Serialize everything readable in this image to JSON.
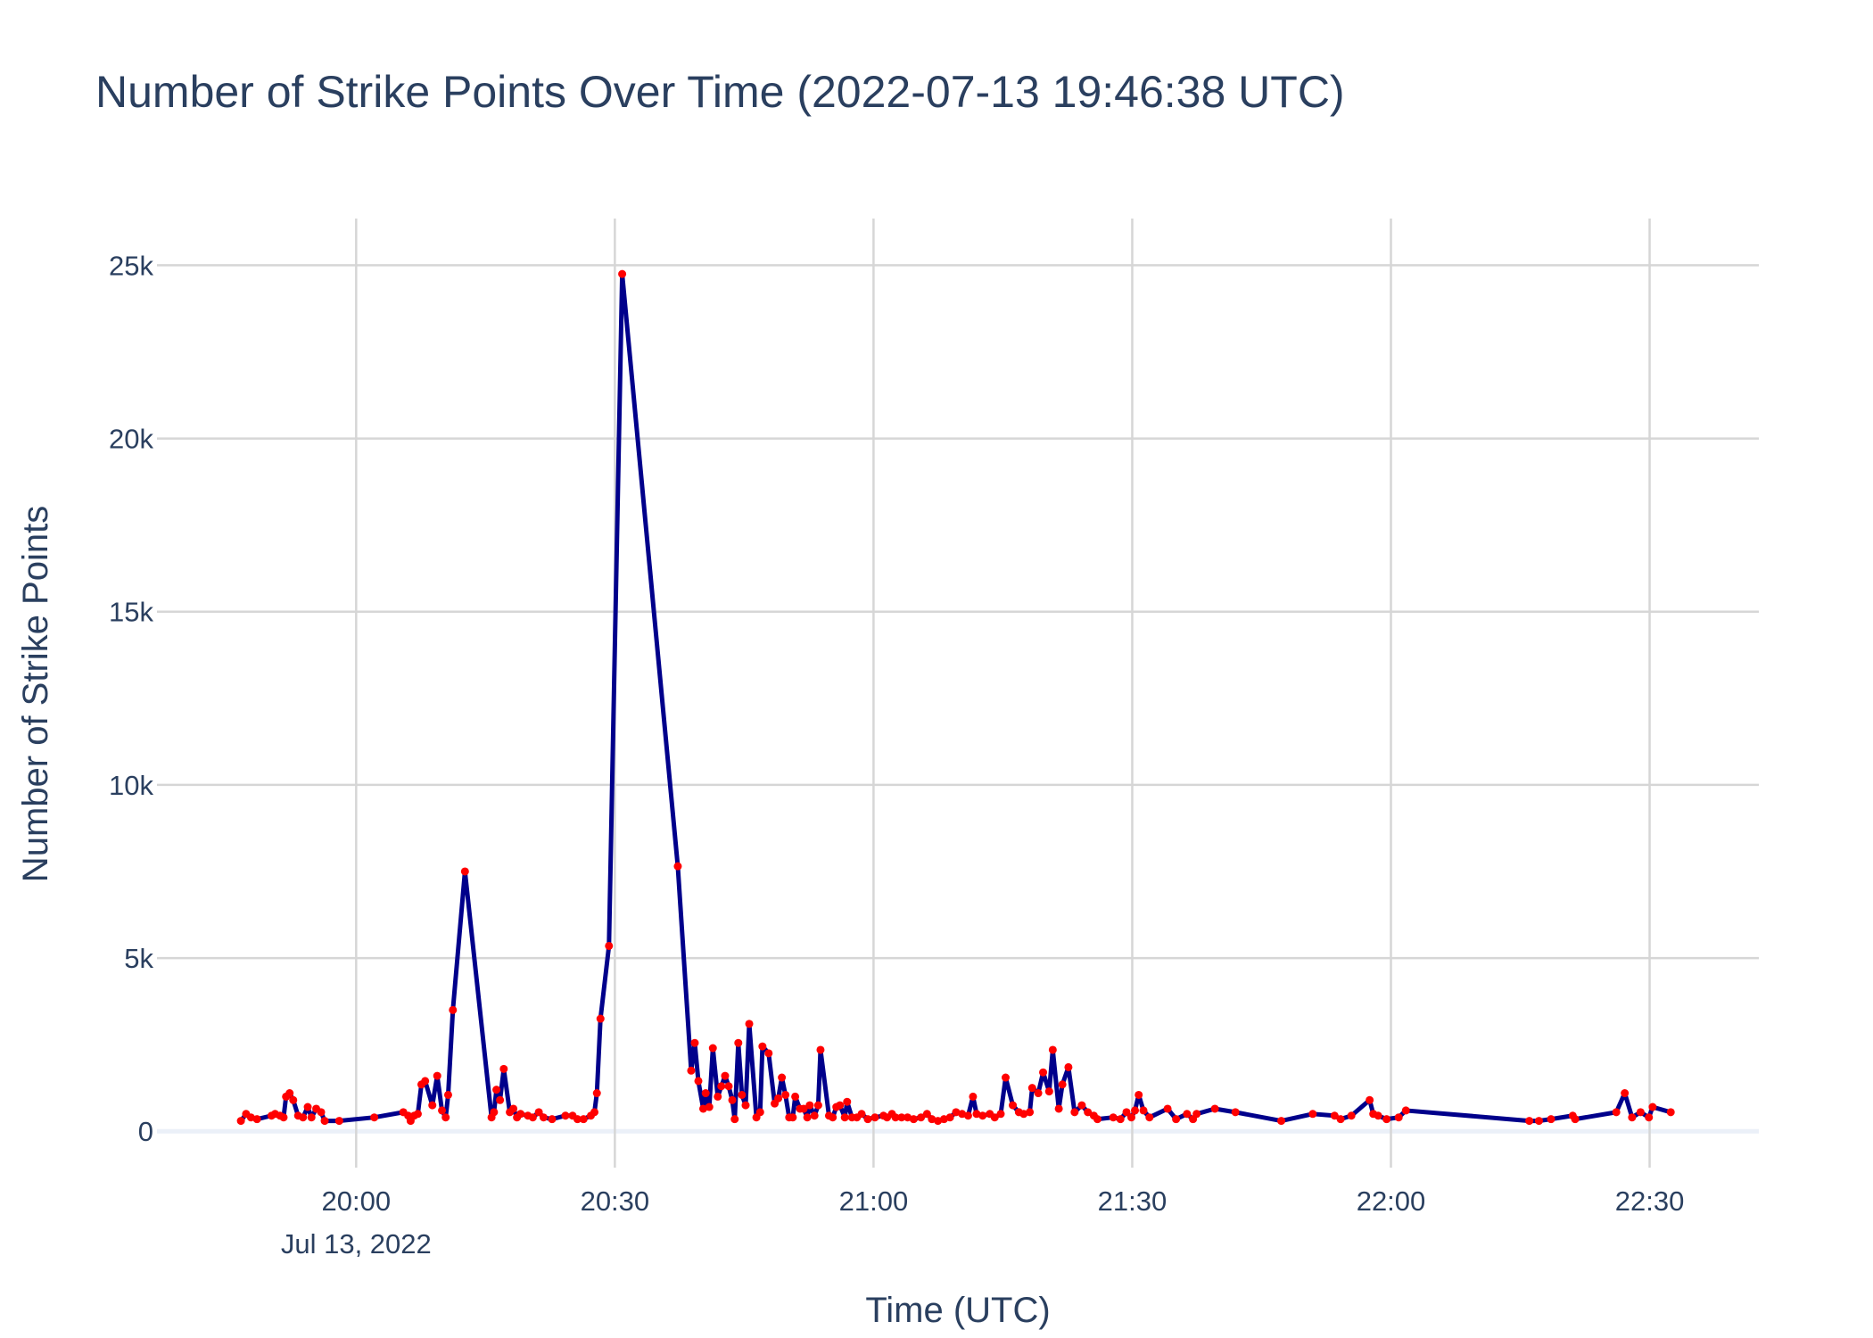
{
  "chart_data": {
    "type": "line",
    "title": "Number of Strike Points Over Time (2022-07-13 19:46:38 UTC)",
    "x_label": "Time (UTC)",
    "y_label": "Number of Strike Points",
    "color": "#00008b",
    "marker_color": "#ff0000",
    "grid": true,
    "xlim": [
      "2022-07-13T19:36:54",
      "2022-07-13T22:42:40"
    ],
    "ylim": [
      -1050,
      26350
    ],
    "xticks": [
      {
        "value": "2022-07-13T20:00",
        "label": "20:00"
      },
      {
        "value": "2022-07-13T20:30",
        "label": "20:30"
      },
      {
        "value": "2022-07-13T21:00",
        "label": "21:00"
      },
      {
        "value": "2022-07-13T21:30",
        "label": "21:30"
      },
      {
        "value": "2022-07-13T22:00",
        "label": "22:00"
      },
      {
        "value": "2022-07-13T22:30",
        "label": "22:30"
      }
    ],
    "xtick_date_label": "Jul 13, 2022",
    "yticks": [
      0,
      {
        "value": 5000,
        "label": "5k"
      },
      {
        "value": 10000,
        "label": "10k"
      },
      {
        "value": 15000,
        "label": "15k"
      },
      {
        "value": 20000,
        "label": "20k"
      },
      {
        "value": 25000,
        "label": "25k"
      }
    ],
    "x": [
      "2022-07-13T19:46:38",
      "2022-07-13T19:47:14",
      "2022-07-13T19:47:48",
      "2022-07-13T19:48:30",
      "2022-07-13T19:50:11",
      "2022-07-13T19:50:36",
      "2022-07-13T19:51:10",
      "2022-07-13T19:51:35",
      "2022-07-13T19:51:52",
      "2022-07-13T19:52:17",
      "2022-07-13T19:52:42",
      "2022-07-13T19:53:16",
      "2022-07-13T19:53:50",
      "2022-07-13T19:54:23",
      "2022-07-13T19:54:49",
      "2022-07-13T19:55:22",
      "2022-07-13T19:55:56",
      "2022-07-13T19:56:21",
      "2022-07-13T19:58:02",
      "2022-07-13T20:02:06",
      "2022-07-13T20:05:28",
      "2022-07-13T20:06:02",
      "2022-07-13T20:06:19",
      "2022-07-13T20:06:44",
      "2022-07-13T20:07:09",
      "2022-07-13T20:07:34",
      "2022-07-13T20:08:00",
      "2022-07-13T20:08:50",
      "2022-07-13T20:09:24",
      "2022-07-13T20:09:57",
      "2022-07-13T20:10:23",
      "2022-07-13T20:10:40",
      "2022-07-13T20:11:13",
      "2022-07-13T20:12:37",
      "2022-07-13T20:15:42",
      "2022-07-13T20:15:59",
      "2022-07-13T20:16:16",
      "2022-07-13T20:16:41",
      "2022-07-13T20:17:07",
      "2022-07-13T20:17:49",
      "2022-07-13T20:18:14",
      "2022-07-13T20:18:39",
      "2022-07-13T20:19:04",
      "2022-07-13T20:19:55",
      "2022-07-13T20:20:29",
      "2022-07-13T20:21:11",
      "2022-07-13T20:21:44",
      "2022-07-13T20:22:43",
      "2022-07-13T20:24:16",
      "2022-07-13T20:25:06",
      "2022-07-13T20:25:40",
      "2022-07-13T20:26:22",
      "2022-07-13T20:27:13",
      "2022-07-13T20:27:38",
      "2022-07-13T20:27:55",
      "2022-07-13T20:28:20",
      "2022-07-13T20:29:19",
      "2022-07-13T20:30:51",
      "2022-07-13T20:37:18",
      "2022-07-13T20:38:51",
      "2022-07-13T20:39:16",
      "2022-07-13T20:39:41",
      "2022-07-13T20:40:15",
      "2022-07-13T20:40:32",
      "2022-07-13T20:40:57",
      "2022-07-13T20:41:22",
      "2022-07-13T20:41:56",
      "2022-07-13T20:42:21",
      "2022-07-13T20:42:47",
      "2022-07-13T20:43:12",
      "2022-07-13T20:43:37",
      "2022-07-13T20:43:54",
      "2022-07-13T20:44:19",
      "2022-07-13T20:44:44",
      "2022-07-13T20:45:10",
      "2022-07-13T20:45:35",
      "2022-07-13T20:46:25",
      "2022-07-13T20:46:51",
      "2022-07-13T20:47:07",
      "2022-07-13T20:47:50",
      "2022-07-13T20:48:32",
      "2022-07-13T20:48:57",
      "2022-07-13T20:49:22",
      "2022-07-13T20:49:47",
      "2022-07-13T20:50:13",
      "2022-07-13T20:50:38",
      "2022-07-13T20:50:55",
      "2022-07-13T20:51:28",
      "2022-07-13T20:51:54",
      "2022-07-13T20:52:19",
      "2022-07-13T20:52:36",
      "2022-07-13T20:53:09",
      "2022-07-13T20:53:35",
      "2022-07-13T20:53:51",
      "2022-07-13T20:54:50",
      "2022-07-13T20:55:16",
      "2022-07-13T20:55:41",
      "2022-07-13T20:56:06",
      "2022-07-13T20:56:40",
      "2022-07-13T20:56:56",
      "2022-07-13T20:57:30",
      "2022-07-13T20:58:04",
      "2022-07-13T20:58:37",
      "2022-07-13T20:59:20",
      "2022-07-13T21:00:10",
      "2022-07-13T21:01:09",
      "2022-07-13T21:01:34",
      "2022-07-13T21:02:08",
      "2022-07-13T21:02:33",
      "2022-07-13T21:03:15",
      "2022-07-13T21:03:57",
      "2022-07-13T21:04:39",
      "2022-07-13T21:05:30",
      "2022-07-13T21:06:12",
      "2022-07-13T21:06:46",
      "2022-07-13T21:07:28",
      "2022-07-13T21:08:10",
      "2022-07-13T21:08:52",
      "2022-07-13T21:09:34",
      "2022-07-13T21:10:16",
      "2022-07-13T21:10:58",
      "2022-07-13T21:11:32",
      "2022-07-13T21:11:57",
      "2022-07-13T21:12:39",
      "2022-07-13T21:13:29",
      "2022-07-13T21:14:03",
      "2022-07-13T21:14:45",
      "2022-07-13T21:15:19",
      "2022-07-13T21:16:09",
      "2022-07-13T21:16:51",
      "2022-07-13T21:17:25",
      "2022-07-13T21:18:07",
      "2022-07-13T21:18:24",
      "2022-07-13T21:19:06",
      "2022-07-13T21:19:40",
      "2022-07-13T21:20:22",
      "2022-07-13T21:20:47",
      "2022-07-13T21:21:29",
      "2022-07-13T21:21:54",
      "2022-07-13T21:22:36",
      "2022-07-13T21:23:19",
      "2022-07-13T21:24:09",
      "2022-07-13T21:24:51",
      "2022-07-13T21:25:33",
      "2022-07-13T21:25:58",
      "2022-07-13T21:27:48",
      "2022-07-13T21:28:38",
      "2022-07-13T21:29:20",
      "2022-07-13T21:29:54",
      "2022-07-13T21:30:19",
      "2022-07-13T21:30:45",
      "2022-07-13T21:31:18",
      "2022-07-13T21:32:00",
      "2022-07-13T21:34:06",
      "2022-07-13T21:35:05",
      "2022-07-13T21:36:21",
      "2022-07-13T21:37:03",
      "2022-07-13T21:37:28",
      "2022-07-13T21:39:35",
      "2022-07-13T21:41:58",
      "2022-07-13T21:47:17",
      "2022-07-13T21:50:56",
      "2022-07-13T21:53:28",
      "2022-07-13T21:54:10",
      "2022-07-13T21:55:25",
      "2022-07-13T21:57:32",
      "2022-07-13T21:57:57",
      "2022-07-13T21:58:31",
      "2022-07-13T21:59:30",
      "2022-07-13T22:00:54",
      "2022-07-13T22:01:44",
      "2022-07-13T22:16:03",
      "2022-07-13T22:17:10",
      "2022-07-13T22:18:34",
      "2022-07-13T22:21:05",
      "2022-07-13T22:21:22",
      "2022-07-13T22:26:08",
      "2022-07-13T22:27:07",
      "2022-07-13T22:27:58",
      "2022-07-13T22:28:57",
      "2022-07-13T22:29:55",
      "2022-07-13T22:30:21",
      "2022-07-13T22:32:27"
    ],
    "values": [
      300,
      500,
      400,
      350,
      450,
      500,
      450,
      400,
      1000,
      1100,
      900,
      450,
      400,
      700,
      400,
      650,
      550,
      300,
      300,
      400,
      550,
      450,
      300,
      450,
      500,
      1350,
      1450,
      750,
      1600,
      600,
      400,
      1050,
      3500,
      7500,
      400,
      550,
      1200,
      900,
      1800,
      550,
      650,
      400,
      500,
      450,
      400,
      550,
      400,
      350,
      450,
      450,
      350,
      350,
      450,
      550,
      1100,
      3250,
      5350,
      24750,
      7650,
      1750,
      2550,
      1450,
      650,
      1100,
      700,
      2400,
      1000,
      1300,
      1600,
      1300,
      900,
      350,
      2550,
      1050,
      750,
      3100,
      400,
      550,
      2450,
      2250,
      800,
      950,
      1550,
      1050,
      400,
      400,
      1000,
      650,
      650,
      400,
      750,
      450,
      750,
      2350,
      450,
      400,
      700,
      750,
      400,
      850,
      400,
      400,
      500,
      350,
      400,
      450,
      400,
      500,
      400,
      400,
      400,
      350,
      400,
      500,
      350,
      300,
      350,
      400,
      550,
      500,
      450,
      1000,
      500,
      450,
      500,
      400,
      500,
      1550,
      750,
      550,
      500,
      550,
      1250,
      1100,
      1700,
      1150,
      2350,
      650,
      1350,
      1850,
      550,
      750,
      550,
      450,
      350,
      400,
      350,
      550,
      400,
      600,
      1050,
      600,
      400,
      650,
      350,
      500,
      350,
      500,
      650,
      550,
      300,
      500,
      450,
      350,
      450,
      900,
      500,
      450,
      350,
      400,
      600,
      300,
      300,
      350,
      450,
      350,
      550,
      1100,
      400,
      550,
      400,
      700,
      550
    ]
  }
}
